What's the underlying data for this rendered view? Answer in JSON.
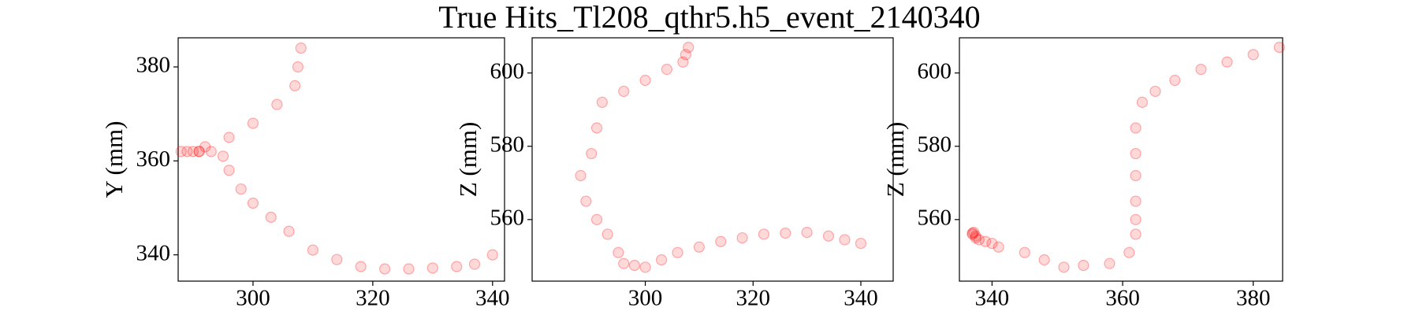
{
  "title": "True Hits_Tl208_qthr5.h5_event_2140340",
  "chart_data": [
    {
      "type": "scatter",
      "ylabel": "Y (mm)",
      "color": "#ff0000",
      "x": [
        308,
        307.5,
        307,
        304,
        300,
        296,
        292,
        291,
        290,
        288,
        289,
        291,
        293,
        295,
        296,
        298,
        300,
        303,
        306,
        310,
        314,
        318,
        322,
        326,
        330,
        334,
        337,
        340
      ],
      "y": [
        384,
        380,
        376,
        372,
        368,
        365,
        363,
        362,
        362,
        362,
        362,
        362,
        362,
        361,
        358,
        354,
        351,
        348,
        345,
        341,
        339,
        337.5,
        337,
        337,
        337.2,
        337.5,
        338,
        340
      ],
      "xlim": [
        287.5,
        342
      ],
      "ylim": [
        334.4,
        386.2
      ],
      "xticks": [
        300,
        320,
        340
      ],
      "yticks": [
        340,
        360,
        380
      ]
    },
    {
      "type": "scatter",
      "ylabel": "Z (mm)",
      "color": "#ff0000",
      "x": [
        308,
        307.5,
        307,
        304,
        300,
        296,
        292,
        291,
        290,
        288,
        289,
        291,
        293,
        295,
        296,
        298,
        300,
        303,
        306,
        310,
        314,
        318,
        322,
        326,
        330,
        334,
        337,
        340
      ],
      "y": [
        607,
        605,
        603,
        601,
        598,
        595,
        592,
        585,
        578,
        572,
        565,
        560,
        556,
        551,
        548,
        547.5,
        547,
        549,
        551,
        552.5,
        554,
        555,
        556,
        556.3,
        556.5,
        555.5,
        554.5,
        553.5
      ],
      "xlim": [
        279,
        346
      ],
      "ylim": [
        543.2,
        609.6
      ],
      "xticks": [
        300,
        320,
        340
      ],
      "yticks": [
        560,
        580,
        600
      ]
    },
    {
      "type": "scatter",
      "ylabel": "Z (mm)",
      "color": "#ff0000",
      "x": [
        384,
        380,
        376,
        372,
        368,
        365,
        363,
        362,
        362,
        362,
        362,
        362,
        362,
        361,
        358,
        354,
        351,
        348,
        345,
        341,
        339,
        337.5,
        337,
        337,
        337.2,
        337.5,
        338,
        340
      ],
      "y": [
        607,
        605,
        603,
        601,
        598,
        595,
        592,
        585,
        578,
        572,
        565,
        560,
        556,
        551,
        548,
        547.5,
        547,
        549,
        551,
        552.5,
        554,
        555,
        556,
        556.3,
        556.5,
        555.5,
        554.5,
        553.5
      ],
      "xlim": [
        335,
        384.5
      ],
      "ylim": [
        543.2,
        609.6
      ],
      "xticks": [
        340,
        360,
        380
      ],
      "yticks": [
        560,
        580,
        600
      ]
    }
  ]
}
